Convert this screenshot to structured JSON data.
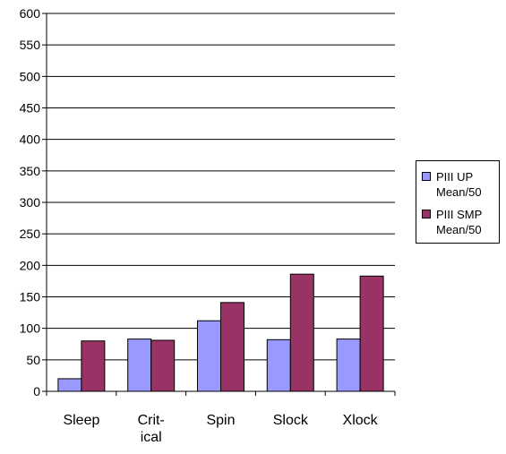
{
  "chart_data": {
    "type": "bar",
    "categories": [
      "Sleep",
      "Crit-\nical",
      "Spin",
      "Slock",
      "Xlock"
    ],
    "series": [
      {
        "name": "PIII UP\nMean/50",
        "values": [
          20,
          83,
          112,
          82,
          83
        ],
        "color": "#9999ff"
      },
      {
        "name": "PIII SMP\nMean/50",
        "values": [
          80,
          81,
          141,
          186,
          183
        ],
        "color": "#993366"
      }
    ],
    "ylim": [
      0,
      600
    ],
    "yticks": [
      0,
      50,
      100,
      150,
      200,
      250,
      300,
      350,
      400,
      450,
      500,
      550,
      600
    ],
    "grid": true,
    "legend_position": "right",
    "title": "",
    "xlabel": "",
    "ylabel": ""
  }
}
